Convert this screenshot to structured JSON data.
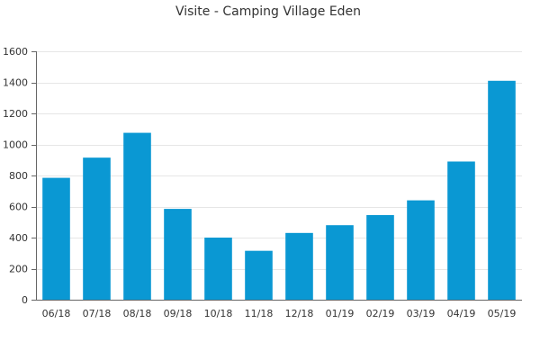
{
  "chart_data": {
    "type": "bar",
    "title": "Visite - Camping Village Eden",
    "categories": [
      "06/18",
      "07/18",
      "08/18",
      "09/18",
      "10/18",
      "11/18",
      "12/18",
      "01/19",
      "02/19",
      "03/19",
      "04/19",
      "05/19"
    ],
    "values": [
      785,
      915,
      1075,
      585,
      400,
      315,
      430,
      480,
      545,
      640,
      890,
      1410
    ],
    "xlabel": "",
    "ylabel": "",
    "ylim": [
      0,
      1600
    ],
    "yticks": [
      0,
      200,
      400,
      600,
      800,
      1000,
      1200,
      1400,
      1600
    ],
    "grid": true,
    "bar_color": "#0a98d3"
  }
}
